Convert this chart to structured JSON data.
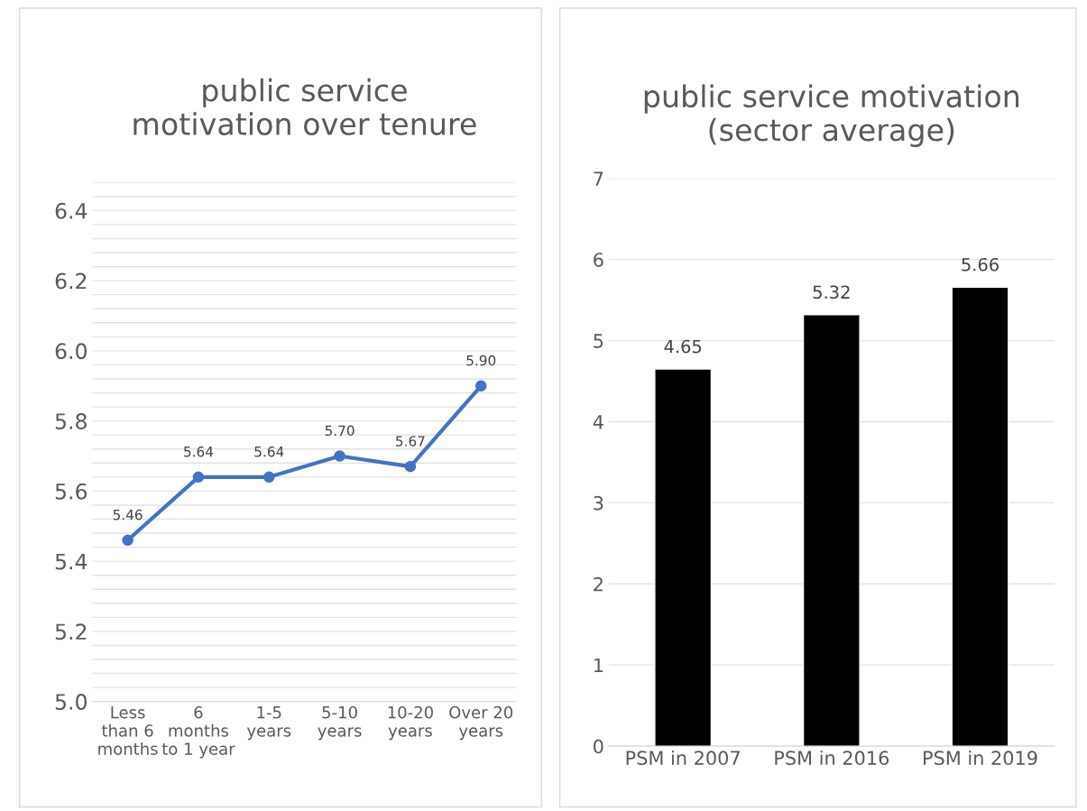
{
  "chart_data": [
    {
      "type": "line",
      "title": "public service\nmotivation over tenure",
      "categories": [
        "Less\nthan 6\nmonths",
        "6\nmonths\nto 1 year",
        "1-5\nyears",
        "5-10\nyears",
        "10-20\nyears",
        "Over 20\nyears"
      ],
      "series": [
        {
          "color": "#4472c4",
          "values": [
            5.46,
            5.64,
            5.64,
            5.7,
            5.67,
            5.9
          ]
        }
      ],
      "value_labels": [
        "5.46",
        "5.64",
        "5.64",
        "5.70",
        "5.67",
        "5.90"
      ],
      "ylim": [
        5.0,
        6.48
      ],
      "yticks": [
        {
          "value": 5.0,
          "label": "5.0"
        },
        {
          "value": 5.04,
          "label": null
        },
        {
          "value": 5.08,
          "label": null
        },
        {
          "value": 5.12,
          "label": null
        },
        {
          "value": 5.16,
          "label": null
        },
        {
          "value": 5.2,
          "label": "5.2"
        },
        {
          "value": 5.24,
          "label": null
        },
        {
          "value": 5.28,
          "label": null
        },
        {
          "value": 5.32,
          "label": null
        },
        {
          "value": 5.36,
          "label": null
        },
        {
          "value": 5.4,
          "label": "5.4"
        },
        {
          "value": 5.44,
          "label": null
        },
        {
          "value": 5.48,
          "label": null
        },
        {
          "value": 5.52,
          "label": null
        },
        {
          "value": 5.56,
          "label": null
        },
        {
          "value": 5.6,
          "label": "5.6"
        },
        {
          "value": 5.64,
          "label": null
        },
        {
          "value": 5.68,
          "label": null
        },
        {
          "value": 5.72,
          "label": null
        },
        {
          "value": 5.76,
          "label": null
        },
        {
          "value": 5.8,
          "label": "5.8"
        },
        {
          "value": 5.84,
          "label": null
        },
        {
          "value": 5.88,
          "label": null
        },
        {
          "value": 5.92,
          "label": null
        },
        {
          "value": 5.96,
          "label": null
        },
        {
          "value": 6.0,
          "label": "6.0"
        },
        {
          "value": 6.04,
          "label": null
        },
        {
          "value": 6.08,
          "label": null
        },
        {
          "value": 6.12,
          "label": null
        },
        {
          "value": 6.16,
          "label": null
        },
        {
          "value": 6.2,
          "label": "6.2"
        },
        {
          "value": 6.24,
          "label": null
        },
        {
          "value": 6.28,
          "label": null
        },
        {
          "value": 6.32,
          "label": null
        },
        {
          "value": 6.36,
          "label": null
        },
        {
          "value": 6.4,
          "label": "6.4"
        },
        {
          "value": 6.44,
          "label": null
        },
        {
          "value": 6.48,
          "label": null
        }
      ],
      "grid": "y",
      "marker": "circle",
      "line_style": "solid",
      "legend": false
    },
    {
      "type": "bar",
      "title": "public service motivation\n(sector average)",
      "categories": [
        "PSM in 2007",
        "PSM in 2016",
        "PSM in 2019"
      ],
      "series": [
        {
          "color": "#000000",
          "values": [
            4.65,
            5.32,
            5.66
          ]
        }
      ],
      "data_labels": true,
      "ylim": [
        0,
        7
      ],
      "yticks": [
        0,
        1,
        2,
        3,
        4,
        5,
        6,
        7
      ],
      "grid": "y",
      "legend": false
    }
  ]
}
